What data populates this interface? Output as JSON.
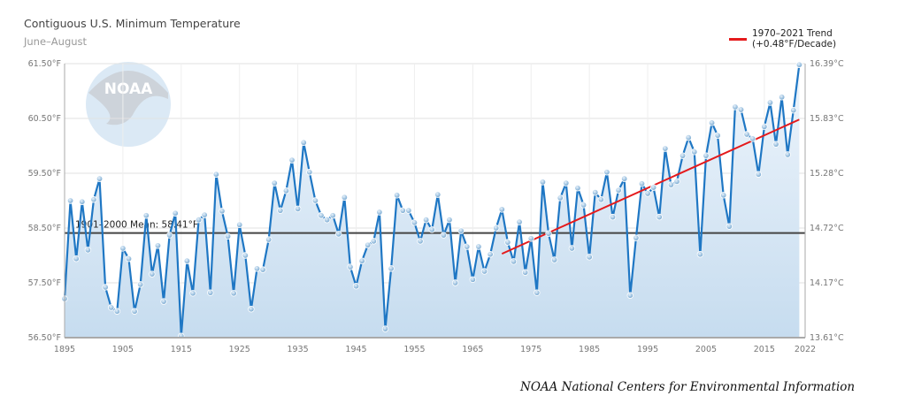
{
  "chart_data": {
    "type": "line",
    "title": "Contiguous U.S. Minimum Temperature",
    "subtitle": "June–August",
    "xlim": [
      1895,
      2022
    ],
    "ylim": [
      56.5,
      61.5
    ],
    "x_ticks": [
      "1895",
      "1905",
      "1915",
      "1925",
      "1935",
      "1945",
      "1955",
      "1965",
      "1975",
      "1985",
      "1995",
      "2005",
      "2015",
      "2022"
    ],
    "y_ticks_left": [
      "56.50°F",
      "57.50°F",
      "58.50°F",
      "59.50°F",
      "60.50°F",
      "61.50°F"
    ],
    "y_ticks_right": [
      "13.61°C",
      "14.17°C",
      "14.72°C",
      "15.28°C",
      "15.83°C",
      "16.39°C"
    ],
    "grid": true,
    "x_start": 1895,
    "values": [
      57.21,
      59.0,
      57.94,
      58.98,
      58.1,
      59.02,
      59.4,
      57.42,
      57.05,
      56.98,
      58.13,
      57.94,
      56.98,
      57.47,
      58.73,
      57.66,
      58.18,
      57.16,
      58.37,
      58.77,
      56.53,
      57.9,
      57.31,
      58.65,
      58.74,
      57.32,
      59.48,
      58.81,
      58.35,
      57.31,
      58.56,
      58.0,
      57.02,
      57.76,
      57.74,
      58.29,
      59.32,
      58.82,
      59.18,
      59.74,
      58.85,
      60.06,
      59.52,
      59.0,
      58.73,
      58.65,
      58.73,
      58.39,
      59.06,
      57.79,
      57.44,
      57.9,
      58.19,
      58.26,
      58.79,
      56.66,
      57.76,
      59.1,
      58.82,
      58.82,
      58.6,
      58.26,
      58.65,
      58.47,
      59.11,
      58.37,
      58.65,
      57.5,
      58.45,
      58.16,
      57.56,
      58.16,
      57.71,
      58.02,
      58.5,
      58.84,
      58.24,
      57.89,
      58.61,
      57.69,
      58.31,
      57.32,
      59.34,
      58.4,
      57.92,
      59.05,
      59.32,
      58.13,
      59.23,
      58.92,
      57.97,
      59.15,
      59.02,
      59.52,
      58.7,
      59.19,
      59.4,
      57.27,
      58.32,
      59.31,
      59.13,
      59.24,
      58.7,
      59.95,
      59.29,
      59.35,
      59.82,
      60.15,
      59.89,
      58.02,
      59.82,
      60.42,
      60.19,
      59.1,
      58.53,
      60.71,
      60.66,
      60.21,
      60.13,
      59.48,
      60.35,
      60.79,
      60.03,
      60.89,
      59.84,
      60.65,
      61.48
    ],
    "mean": {
      "label": "1901–2000 Mean: 58.41°F",
      "value": 58.41,
      "color": "#444444"
    },
    "trend": {
      "label_line1": "1970–2021 Trend",
      "label_line2": "(+0.48°F/Decade)",
      "x": [
        1970,
        2021
      ],
      "y": [
        58.03,
        60.48
      ],
      "color": "#e41a1c"
    },
    "line_color": "#1f77c4",
    "legend_position": "top-right"
  },
  "credit": "NOAA National Centers for Environmental Information",
  "logo_text": "NOAA"
}
